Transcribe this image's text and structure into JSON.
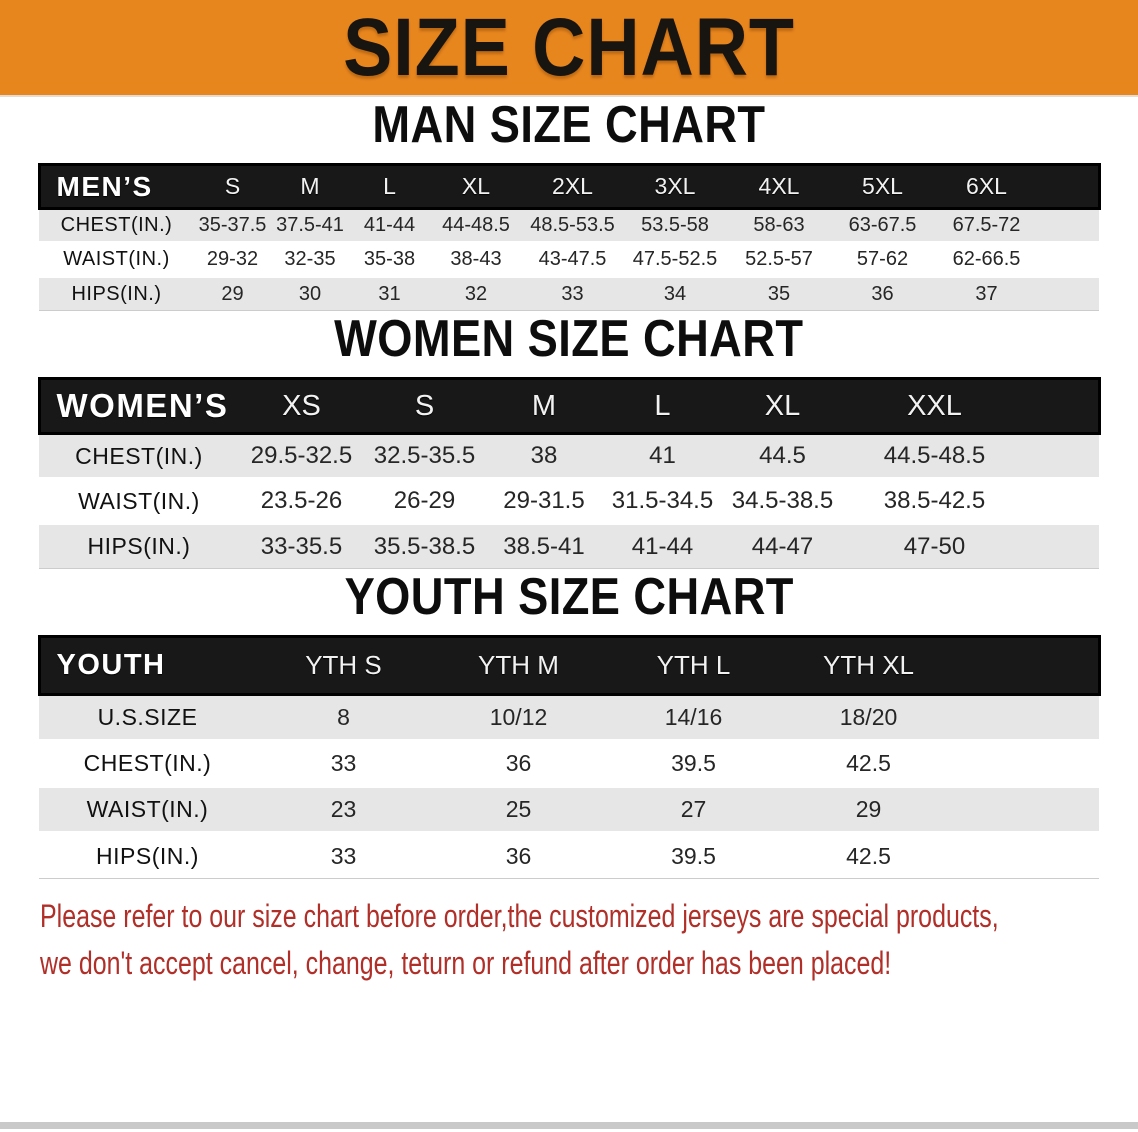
{
  "banner": {
    "title": "SIZE CHART"
  },
  "sections": [
    {
      "heading": "MAN SIZE CHART",
      "table": {
        "corner": "MEN’S",
        "columns": [
          "S",
          "M",
          "L",
          "XL",
          "2XL",
          "3XL",
          "4XL",
          "5XL",
          "6XL"
        ],
        "rows": [
          {
            "label": "CHEST(IN.)",
            "values": [
              "35-37.5",
              "37.5-41",
              "41-44",
              "44-48.5",
              "48.5-53.5",
              "53.5-58",
              "58-63",
              "63-67.5",
              "67.5-72"
            ]
          },
          {
            "label": "WAIST(IN.)",
            "values": [
              "29-32",
              "32-35",
              "35-38",
              "38-43",
              "43-47.5",
              "47.5-52.5",
              "52.5-57",
              "57-62",
              "62-66.5"
            ]
          },
          {
            "label": "HIPS(IN.)",
            "values": [
              "29",
              "30",
              "31",
              "32",
              "33",
              "34",
              "35",
              "36",
              "37"
            ]
          }
        ]
      }
    },
    {
      "heading": "WOMEN SIZE CHART",
      "table": {
        "corner": "WOMEN’S",
        "columns": [
          "XS",
          "S",
          "M",
          "L",
          "XL",
          "XXL"
        ],
        "rows": [
          {
            "label": "CHEST(IN.)",
            "values": [
              "29.5-32.5",
              "32.5-35.5",
              "38",
              "41",
              "44.5",
              "44.5-48.5"
            ]
          },
          {
            "label": "WAIST(IN.)",
            "values": [
              "23.5-26",
              "26-29",
              "29-31.5",
              "31.5-34.5",
              "34.5-38.5",
              "38.5-42.5"
            ]
          },
          {
            "label": "HIPS(IN.)",
            "values": [
              "33-35.5",
              "35.5-38.5",
              "38.5-41",
              "41-44",
              "44-47",
              "47-50"
            ]
          }
        ]
      }
    },
    {
      "heading": "YOUTH SIZE CHART",
      "table": {
        "corner": "YOUTH",
        "columns": [
          "YTH S",
          "YTH M",
          "YTH L",
          "YTH XL"
        ],
        "rows": [
          {
            "label": "U.S.SIZE",
            "values": [
              "8",
              "10/12",
              "14/16",
              "18/20"
            ]
          },
          {
            "label": "CHEST(IN.)",
            "values": [
              "33",
              "36",
              "39.5",
              "42.5"
            ]
          },
          {
            "label": "WAIST(IN.)",
            "values": [
              "23",
              "25",
              "27",
              "29"
            ]
          },
          {
            "label": "HIPS(IN.)",
            "values": [
              "33",
              "36",
              "39.5",
              "42.5"
            ]
          }
        ]
      }
    }
  ],
  "footnote": {
    "line1": "Please refer to our size chart before order,the customized jerseys are special products,",
    "line2": "we don't accept cancel, change, teturn or refund after order has been placed!"
  },
  "colors": {
    "banner_bg": "#E8861E",
    "band_bg": "#181818",
    "stripe": "#e6e6e6",
    "note_red": "#B02F28"
  }
}
